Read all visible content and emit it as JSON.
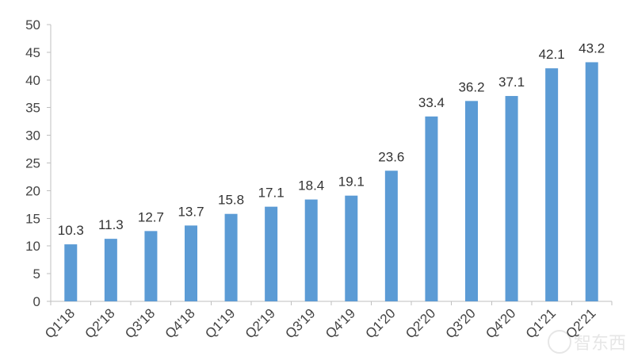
{
  "chart_data": {
    "type": "bar",
    "categories": [
      "Q1'18",
      "Q2'18",
      "Q3'18",
      "Q4'18",
      "Q1'19",
      "Q2'19",
      "Q3'19",
      "Q4'19",
      "Q1'20",
      "Q2'20",
      "Q3'20",
      "Q4'20",
      "Q1'21",
      "Q2'21"
    ],
    "values": [
      10.3,
      11.3,
      12.7,
      13.7,
      15.8,
      17.1,
      18.4,
      19.1,
      23.6,
      33.4,
      36.2,
      37.1,
      42.1,
      43.2
    ],
    "data_labels": [
      "10.3",
      "11.3",
      "12.7",
      "13.7",
      "15.8",
      "17.1",
      "18.4",
      "19.1",
      "23.6",
      "33.4",
      "36.2",
      "37.1",
      "42.1",
      "43.2"
    ],
    "title": "",
    "xlabel": "",
    "ylabel": "",
    "ylim": [
      0,
      50
    ],
    "yticks": [
      0,
      5,
      10,
      15,
      20,
      25,
      30,
      35,
      40,
      45,
      50
    ],
    "grid": false,
    "legend": "none",
    "bar_color": "#5b9bd5"
  },
  "watermark": {
    "text": "智东西"
  }
}
